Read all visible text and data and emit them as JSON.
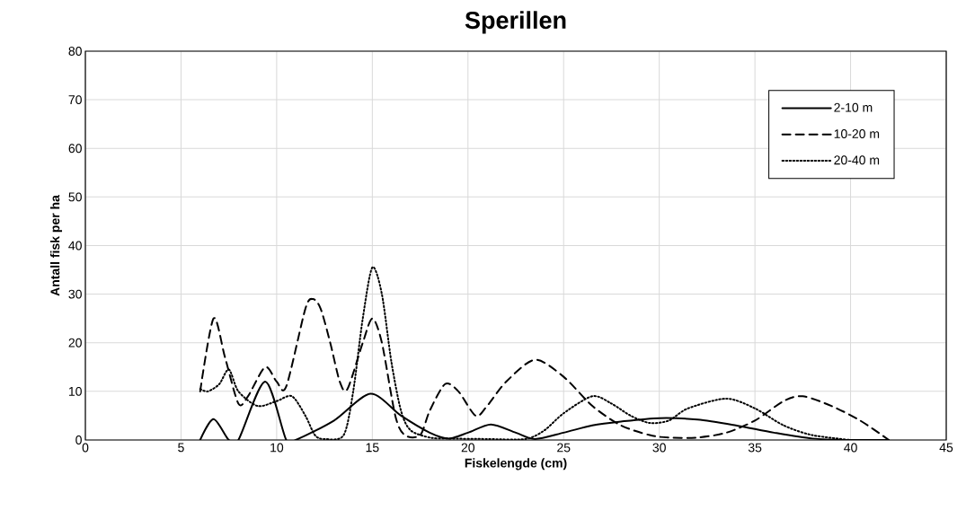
{
  "chart_data": {
    "type": "line",
    "title": "Sperillen",
    "xlabel": "Fiskelengde (cm)",
    "ylabel": "Antall fisk  per ha",
    "xlim": [
      0,
      45
    ],
    "xticks": [
      0,
      5,
      10,
      15,
      20,
      25,
      30,
      35,
      40,
      45
    ],
    "ylim": [
      0,
      80
    ],
    "yticks": [
      0,
      10,
      20,
      30,
      40,
      50,
      60,
      70,
      80
    ],
    "grid": true,
    "legend": "top right",
    "series": [
      {
        "name": "2-10 m",
        "color": "#000000",
        "line_style": "solid",
        "x": [
          6,
          6.7,
          7.5,
          8,
          9.4,
          10.5,
          11,
          13,
          14.9,
          16.5,
          18,
          19,
          20,
          21.2,
          22.5,
          23.5,
          25,
          26.5,
          28,
          30,
          32,
          34,
          36,
          38,
          40,
          42
        ],
        "values": [
          0,
          4.3,
          0,
          0,
          12,
          0,
          0,
          4,
          9.5,
          5,
          1.5,
          0.3,
          1.5,
          3.2,
          1.5,
          0.2,
          1.5,
          3,
          3.8,
          4.5,
          4.2,
          3,
          1.5,
          0.3,
          0,
          0
        ]
      },
      {
        "name": "10-20 m",
        "color": "#000000",
        "line_style": "dashed",
        "x": [
          6,
          6.7,
          7.3,
          8,
          8.5,
          9.4,
          10,
          10.5,
          11.5,
          11.9,
          12.3,
          12.8,
          13.3,
          13.7,
          14.5,
          15,
          15.5,
          16.2,
          16.7,
          17.5,
          18,
          18.8,
          19.5,
          20.4,
          21,
          22,
          23.5,
          25,
          26.5,
          28,
          29.5,
          30.5,
          32,
          33.5,
          35,
          36.5,
          37.5,
          39,
          40.5,
          42
        ],
        "values": [
          10,
          25,
          17,
          7.5,
          9,
          15,
          12,
          11,
          27,
          29,
          27,
          20,
          12,
          10.5,
          20,
          25,
          20,
          5,
          1,
          1,
          6,
          11.5,
          10,
          5,
          7,
          12,
          16.5,
          13,
          7,
          3,
          1,
          0.5,
          0.5,
          1.5,
          4,
          8,
          9,
          7,
          4,
          0
        ]
      },
      {
        "name": "20-40 m",
        "color": "#000000",
        "line_style": "dotted",
        "x": [
          6,
          6.4,
          7,
          7.5,
          8,
          9,
          10,
          10.8,
          11.5,
          12,
          12.5,
          13.5,
          14,
          14.5,
          15,
          15.5,
          16,
          16.5,
          17,
          18,
          19,
          21,
          23,
          24,
          25,
          26.5,
          27.5,
          28.5,
          29.5,
          30.5,
          31.5,
          33.5,
          35,
          36.5,
          38,
          40
        ],
        "values": [
          10.5,
          10,
          11.5,
          14.5,
          10,
          7,
          8,
          9,
          5,
          1,
          0.2,
          1,
          10,
          25,
          35.5,
          30,
          16,
          6,
          2,
          0.5,
          0.3,
          0.2,
          0.2,
          2,
          5.5,
          9,
          7.5,
          5,
          3.5,
          4,
          6.5,
          8.5,
          6.5,
          3,
          1,
          0
        ]
      }
    ]
  }
}
